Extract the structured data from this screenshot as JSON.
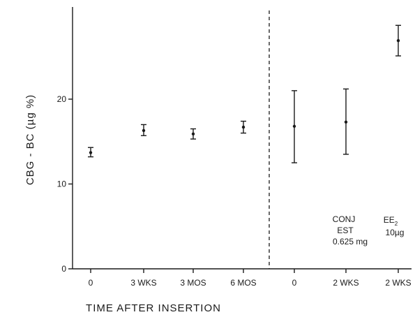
{
  "chart_data": {
    "type": "scatter",
    "title": "",
    "xlabel": "TIME  AFTER  INSERTION",
    "ylabel": "CBG  -  BC  (µg %)",
    "ylim": [
      0,
      30
    ],
    "yticks": [
      "0",
      "10",
      "20"
    ],
    "categories": [
      "0",
      "3 WKS",
      "3 MOS",
      "6 MOS",
      "0",
      "2 WKS",
      "2 WKS"
    ],
    "points": [
      {
        "x": "0",
        "y": 13.7,
        "low": 13.2,
        "high": 14.3
      },
      {
        "x": "3 WKS",
        "y": 16.3,
        "low": 15.7,
        "high": 17.0
      },
      {
        "x": "3 MOS",
        "y": 15.9,
        "low": 15.3,
        "high": 16.5
      },
      {
        "x": "6 MOS",
        "y": 16.7,
        "low": 16.0,
        "high": 17.4
      },
      {
        "x": "0",
        "y": 16.8,
        "low": 12.5,
        "high": 21.0
      },
      {
        "x": "2 WKS",
        "y": 17.3,
        "low": 13.5,
        "high": 21.2
      },
      {
        "x": "2 WKS",
        "y": 26.9,
        "low": 25.1,
        "high": 28.7
      }
    ],
    "separator_after_index": 3,
    "annotations": {
      "conj": [
        "CONJ",
        "EST",
        "0.625 mg"
      ],
      "ee2_main": "EE",
      "ee2_sub": "2",
      "ee2_dose": "10µg"
    },
    "grid": false,
    "legend": "none"
  }
}
